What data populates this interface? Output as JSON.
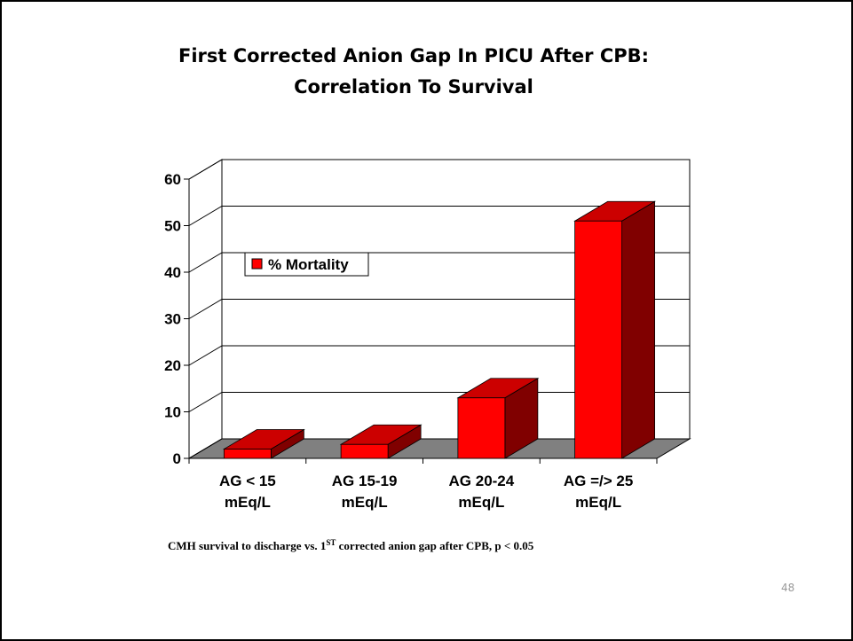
{
  "chart_data": {
    "type": "bar3d",
    "title": "First Corrected Anion Gap In PICU After CPB:",
    "subtitle": "Correlation To Survival",
    "categories": [
      "AG < 15\nmEq/L",
      "AG 15-19\nmEq/L",
      "AG 20-24\nmEq/L",
      "AG =/> 25\nmEq/L"
    ],
    "series": [
      {
        "name": "% Mortality",
        "color": "#ff0000",
        "values": [
          2,
          3,
          13,
          51
        ]
      }
    ],
    "ylim": [
      0,
      60
    ],
    "yticks": [
      0,
      10,
      20,
      30,
      40,
      50,
      60
    ],
    "grid": true,
    "legend": "left",
    "footnote": {
      "before": "CMH survival to discharge vs. 1",
      "sup": "ST",
      "after": " corrected anion gap after CPB, p < 0.05"
    }
  },
  "page_number": "48"
}
